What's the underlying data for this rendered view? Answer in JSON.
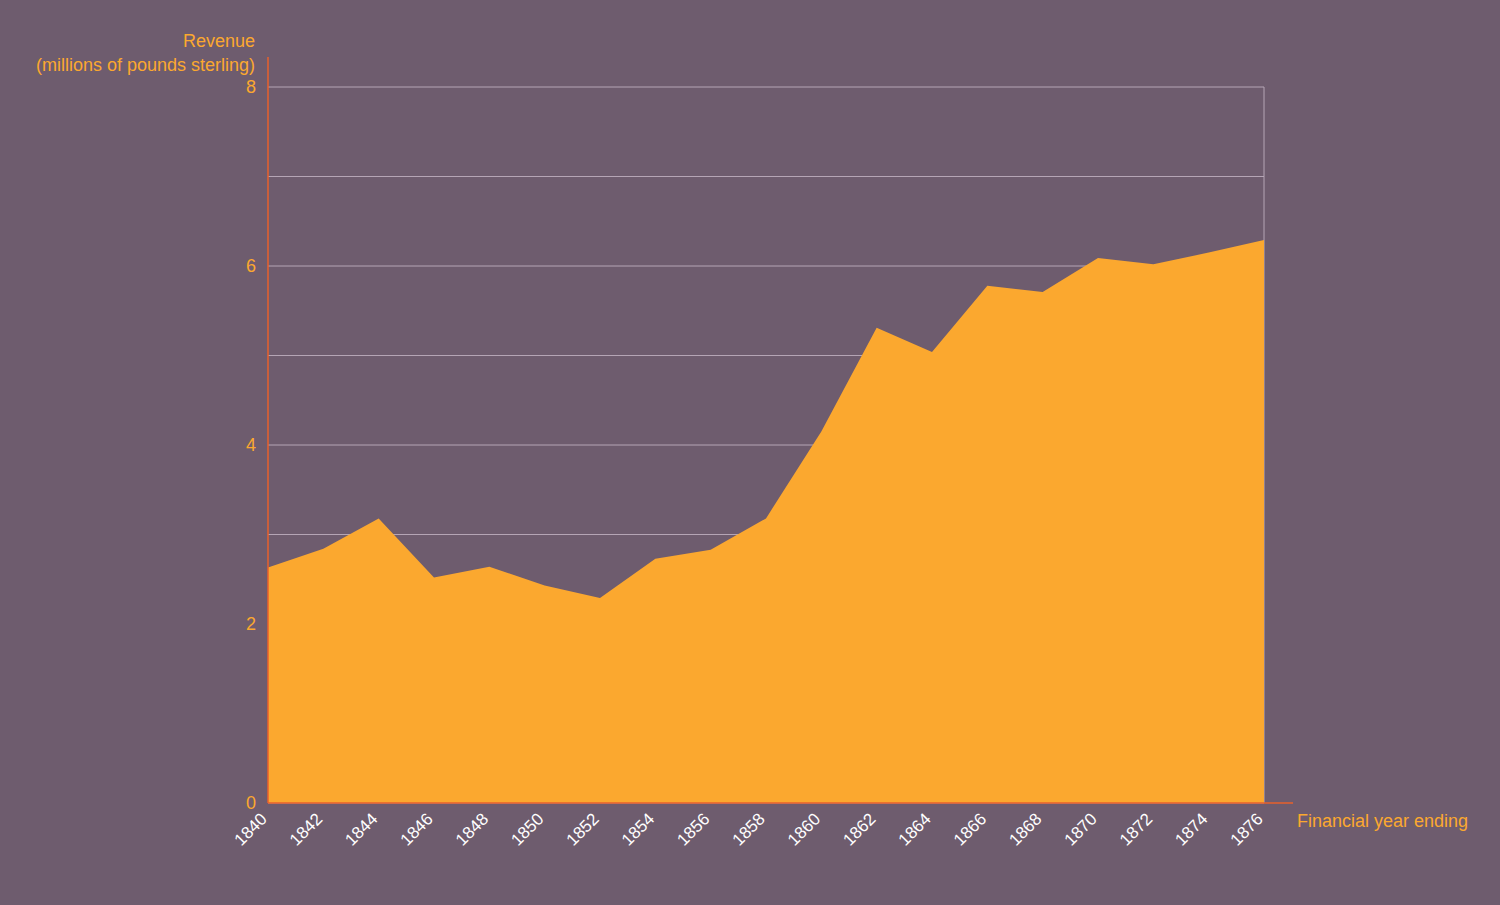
{
  "chart_data": {
    "type": "area",
    "y_label": "Revenue\n(millions of pounds sterling)",
    "x_label": "Financial year ending",
    "x": [
      1840,
      1842,
      1844,
      1846,
      1848,
      1850,
      1852,
      1854,
      1856,
      1858,
      1860,
      1862,
      1864,
      1866,
      1868,
      1870,
      1872,
      1874,
      1876
    ],
    "series": [
      {
        "name": null,
        "color": "#fba82f",
        "values": [
          2.63,
          2.84,
          3.18,
          2.52,
          2.64,
          2.43,
          2.29,
          2.73,
          2.83,
          3.18,
          4.15,
          5.31,
          5.04,
          5.78,
          5.71,
          6.09,
          6.02,
          6.15,
          6.29
        ]
      }
    ],
    "xlim": [
      1840,
      1876
    ],
    "xticks": [
      1840,
      1842,
      1844,
      1846,
      1848,
      1850,
      1852,
      1854,
      1856,
      1858,
      1860,
      1862,
      1864,
      1866,
      1868,
      1870,
      1872,
      1874,
      1876
    ],
    "ylim": [
      0,
      8
    ],
    "yticks": [
      0,
      {
        "value": 1,
        "label": null
      },
      2,
      {
        "value": 3,
        "label": null
      },
      4,
      {
        "value": 5,
        "label": null
      },
      6,
      {
        "value": 7,
        "label": null
      },
      8
    ],
    "grid": true
  }
}
